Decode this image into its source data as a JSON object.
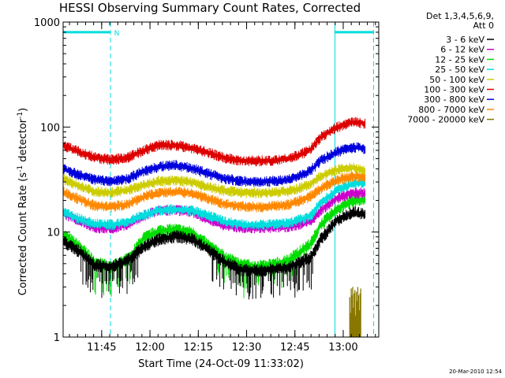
{
  "chart_data": {
    "type": "line",
    "title": "HESSI Observing Summary Count Rates, Corrected",
    "xlabel": "Start Time (24-Oct-09 11:33:02)",
    "ylabel_prefix": "Corrected Count Rate (s",
    "ylabel_sup": "-1",
    "ylabel_mid": " detector",
    "ylabel_sup2": "-1",
    "ylabel_suffix": ")",
    "y_scale": "log",
    "ylim": [
      1,
      1000
    ],
    "xlim_minutes": [
      0,
      98
    ],
    "x_ticks": [
      {
        "label": "11:45",
        "minute": 11.97
      },
      {
        "label": "12:00",
        "minute": 26.97
      },
      {
        "label": "12:15",
        "minute": 41.97
      },
      {
        "label": "12:30",
        "minute": 56.97
      },
      {
        "label": "12:45",
        "minute": 71.97
      },
      {
        "label": "13:00",
        "minute": 86.97
      }
    ],
    "y_ticks": [
      {
        "label": "1",
        "value": 1
      },
      {
        "label": "10",
        "value": 10
      },
      {
        "label": "100",
        "value": 100
      },
      {
        "label": "1000",
        "value": 1000
      }
    ],
    "legend_header": [
      "Det 1,3,4,5,6,9,",
      "Att 0"
    ],
    "legend_position": "outside-right",
    "series": [
      {
        "name": "3 - 6 keV",
        "color": "#000000",
        "x": [
          0,
          5,
          10,
          15,
          20,
          25,
          30,
          35,
          40,
          45,
          50,
          55,
          60,
          65,
          70,
          75,
          77,
          80,
          85,
          90,
          93,
          95,
          97
        ],
        "y": [
          8.2,
          6.5,
          4.8,
          4.7,
          5.3,
          7.2,
          8.6,
          9.1,
          8.6,
          6.8,
          5.2,
          4.4,
          4.3,
          4.4,
          4.6,
          5.4,
          5.8,
          8.5,
          13,
          15.3,
          14.8,
          13.5,
          12
        ]
      },
      {
        "name": "6 - 12 keV",
        "color": "#cc00cc",
        "x": [
          0,
          5,
          10,
          15,
          20,
          25,
          30,
          35,
          40,
          45,
          50,
          55,
          60,
          65,
          70,
          75,
          77,
          80,
          85,
          90,
          93,
          95,
          97
        ],
        "y": [
          15,
          12.8,
          11,
          10.8,
          11.8,
          14.3,
          16,
          16.2,
          15.5,
          13.2,
          11.6,
          11,
          10.9,
          11,
          11.2,
          12.2,
          12.8,
          16,
          21,
          23.5,
          23.5,
          22.5,
          21
        ]
      },
      {
        "name": "12 - 25 keV",
        "color": "#00dd00",
        "x": [
          0,
          5,
          10,
          15,
          20,
          25,
          30,
          35,
          40,
          45,
          50,
          55,
          60,
          65,
          70,
          75,
          77,
          80,
          85,
          90,
          93,
          95,
          97
        ],
        "y": [
          9.5,
          7.3,
          5.1,
          4.6,
          5.5,
          8.7,
          10.3,
          10.5,
          9.9,
          7.5,
          5.8,
          4.9,
          4.7,
          4.9,
          5.4,
          7,
          7.8,
          11.7,
          16.5,
          20,
          20.3,
          19.5,
          17.5
        ]
      },
      {
        "name": "25 - 50 keV",
        "color": "#00dddd",
        "x": [
          0,
          5,
          10,
          15,
          20,
          25,
          30,
          35,
          40,
          45,
          50,
          55,
          60,
          65,
          70,
          75,
          77,
          80,
          85,
          90,
          93,
          95,
          97
        ],
        "y": [
          15.5,
          13.3,
          11.9,
          11.7,
          12.4,
          14.6,
          16.1,
          16.5,
          16,
          14.3,
          12.6,
          11.8,
          11.6,
          11.8,
          12.2,
          13.5,
          14.4,
          19,
          25,
          29,
          29.5,
          28,
          25
        ]
      },
      {
        "name": "50 - 100 keV",
        "color": "#cccc00",
        "x": [
          0,
          5,
          10,
          15,
          20,
          25,
          30,
          35,
          40,
          45,
          50,
          55,
          60,
          65,
          70,
          75,
          77,
          80,
          85,
          90,
          93,
          95,
          97
        ],
        "y": [
          32,
          27.5,
          24.2,
          23.8,
          25,
          28,
          30.5,
          31,
          30,
          27,
          24.7,
          23.7,
          23.6,
          23.8,
          24.5,
          27,
          29,
          34,
          39,
          41,
          39,
          37,
          34
        ]
      },
      {
        "name": "100 - 300 keV",
        "color": "#dd0000",
        "x": [
          0,
          5,
          10,
          15,
          20,
          25,
          30,
          35,
          40,
          45,
          50,
          55,
          60,
          65,
          70,
          75,
          77,
          80,
          85,
          90,
          93,
          95,
          97
        ],
        "y": [
          67,
          58,
          51,
          49,
          51,
          60,
          67,
          67,
          63,
          57,
          51,
          48,
          47.5,
          48,
          50,
          57,
          62,
          80,
          100,
          111,
          110,
          103,
          90
        ]
      },
      {
        "name": "300 - 800 keV",
        "color": "#0000dd",
        "x": [
          0,
          5,
          10,
          15,
          20,
          25,
          30,
          35,
          40,
          45,
          50,
          55,
          60,
          65,
          70,
          75,
          77,
          80,
          85,
          90,
          93,
          95,
          97
        ],
        "y": [
          40,
          35,
          31.5,
          30.5,
          32,
          38,
          42,
          43,
          40.5,
          36,
          32.4,
          30.6,
          30,
          30.5,
          31.5,
          36,
          39,
          48,
          58,
          64,
          63,
          59,
          52
        ]
      },
      {
        "name": "800 - 7000 keV",
        "color": "#ff8800",
        "x": [
          0,
          5,
          10,
          15,
          20,
          25,
          30,
          35,
          40,
          45,
          50,
          55,
          60,
          65,
          70,
          75,
          77,
          80,
          85,
          90,
          93,
          95,
          97
        ],
        "y": [
          24,
          20.5,
          17.8,
          17.4,
          18.4,
          21.7,
          23.7,
          24.3,
          23.3,
          20.8,
          18.5,
          17.6,
          17.3,
          17.6,
          18.2,
          20.6,
          22,
          26,
          31,
          34,
          33.5,
          32,
          29
        ]
      },
      {
        "name": "7000 - 20000 keV",
        "color": "#887700",
        "x": [],
        "y": []
      }
    ],
    "background_spikes": {
      "series": "7000 - 20000 keV",
      "x_range_minutes": [
        89,
        92.4
      ],
      "bottom": 1,
      "tops": [
        2.4,
        1.7,
        2.9,
        2.5,
        3.0,
        1.9,
        2.6,
        2.8,
        1.6,
        2.7,
        2.2,
        3.0,
        2.5,
        1.8,
        2.6,
        2.9
      ]
    },
    "night_bars": [
      {
        "x_range_minutes": [
          0,
          14.7
        ],
        "label": "N",
        "y_value": 800,
        "color": "#00dddd"
      },
      {
        "x_range_minutes": [
          84.4,
          96.4
        ],
        "label": "",
        "y_value": 800,
        "color": "#00dddd"
      }
    ],
    "vertical_markers": [
      {
        "minute": 14.7,
        "style": "dashed",
        "color": "#00dddd"
      },
      {
        "minute": 84.4,
        "style": "solid",
        "color": "#00dddd"
      },
      {
        "minute": 96.4,
        "style": "dashed",
        "color": "#00dddd"
      }
    ],
    "footer_timestamp": "20-Mar-2010 12:54",
    "grid": false
  }
}
